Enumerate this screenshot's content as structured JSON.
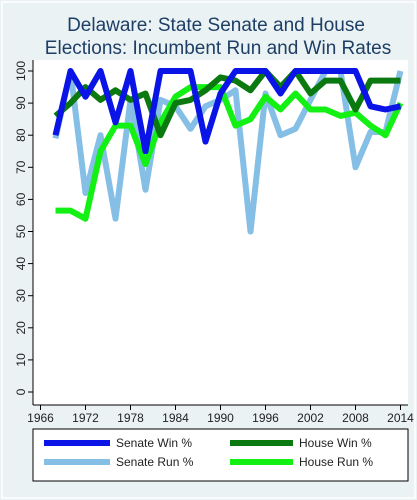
{
  "chart_data": {
    "type": "line",
    "title_lines": [
      "Delaware: State Senate and House",
      "Elections: Incumbent Run and Win Rates"
    ],
    "xlabel": "",
    "ylabel": "",
    "xlim": [
      1965,
      2015
    ],
    "ylim": [
      0,
      100
    ],
    "x_ticks": [
      1966,
      1972,
      1978,
      1984,
      1990,
      1996,
      2002,
      2008,
      2014
    ],
    "y_ticks": [
      0,
      10,
      20,
      30,
      40,
      50,
      60,
      70,
      80,
      90,
      100
    ],
    "grid": false,
    "legend_position": "bottom",
    "x": [
      1968,
      1970,
      1972,
      1974,
      1976,
      1978,
      1980,
      1982,
      1984,
      1986,
      1988,
      1990,
      1992,
      1994,
      1996,
      1998,
      2000,
      2002,
      2004,
      2006,
      2008,
      2010,
      2012,
      2014
    ],
    "series": [
      {
        "name": "Senate Win %",
        "color": "#0a14e6",
        "values": [
          80,
          100,
          92,
          100,
          84,
          100,
          75,
          100,
          100,
          100,
          78,
          93,
          100,
          100,
          100,
          93,
          100,
          100,
          100,
          100,
          100,
          89,
          88,
          89
        ]
      },
      {
        "name": "House Win %",
        "color": "#0a7a10",
        "values": [
          86,
          90,
          95,
          91,
          94,
          91,
          93,
          80,
          90,
          91,
          94,
          98,
          97,
          94,
          100,
          95,
          100,
          93,
          97,
          97,
          88,
          97,
          97,
          97
        ]
      },
      {
        "name": "Senate Run %",
        "color": "#86bfe6",
        "values": [
          79,
          100,
          62,
          80,
          54,
          91,
          63,
          91,
          89,
          82,
          89,
          91,
          94,
          50,
          93,
          80,
          82,
          91,
          100,
          100,
          70,
          81,
          81,
          100
        ]
      },
      {
        "name": "House Run %",
        "color": "#13f013",
        "values": [
          56.5,
          56.5,
          54,
          75,
          83,
          83,
          71,
          84,
          92,
          95,
          95,
          95,
          83,
          85,
          92,
          88,
          93,
          88,
          88,
          86,
          87,
          83,
          80,
          90
        ]
      }
    ]
  }
}
